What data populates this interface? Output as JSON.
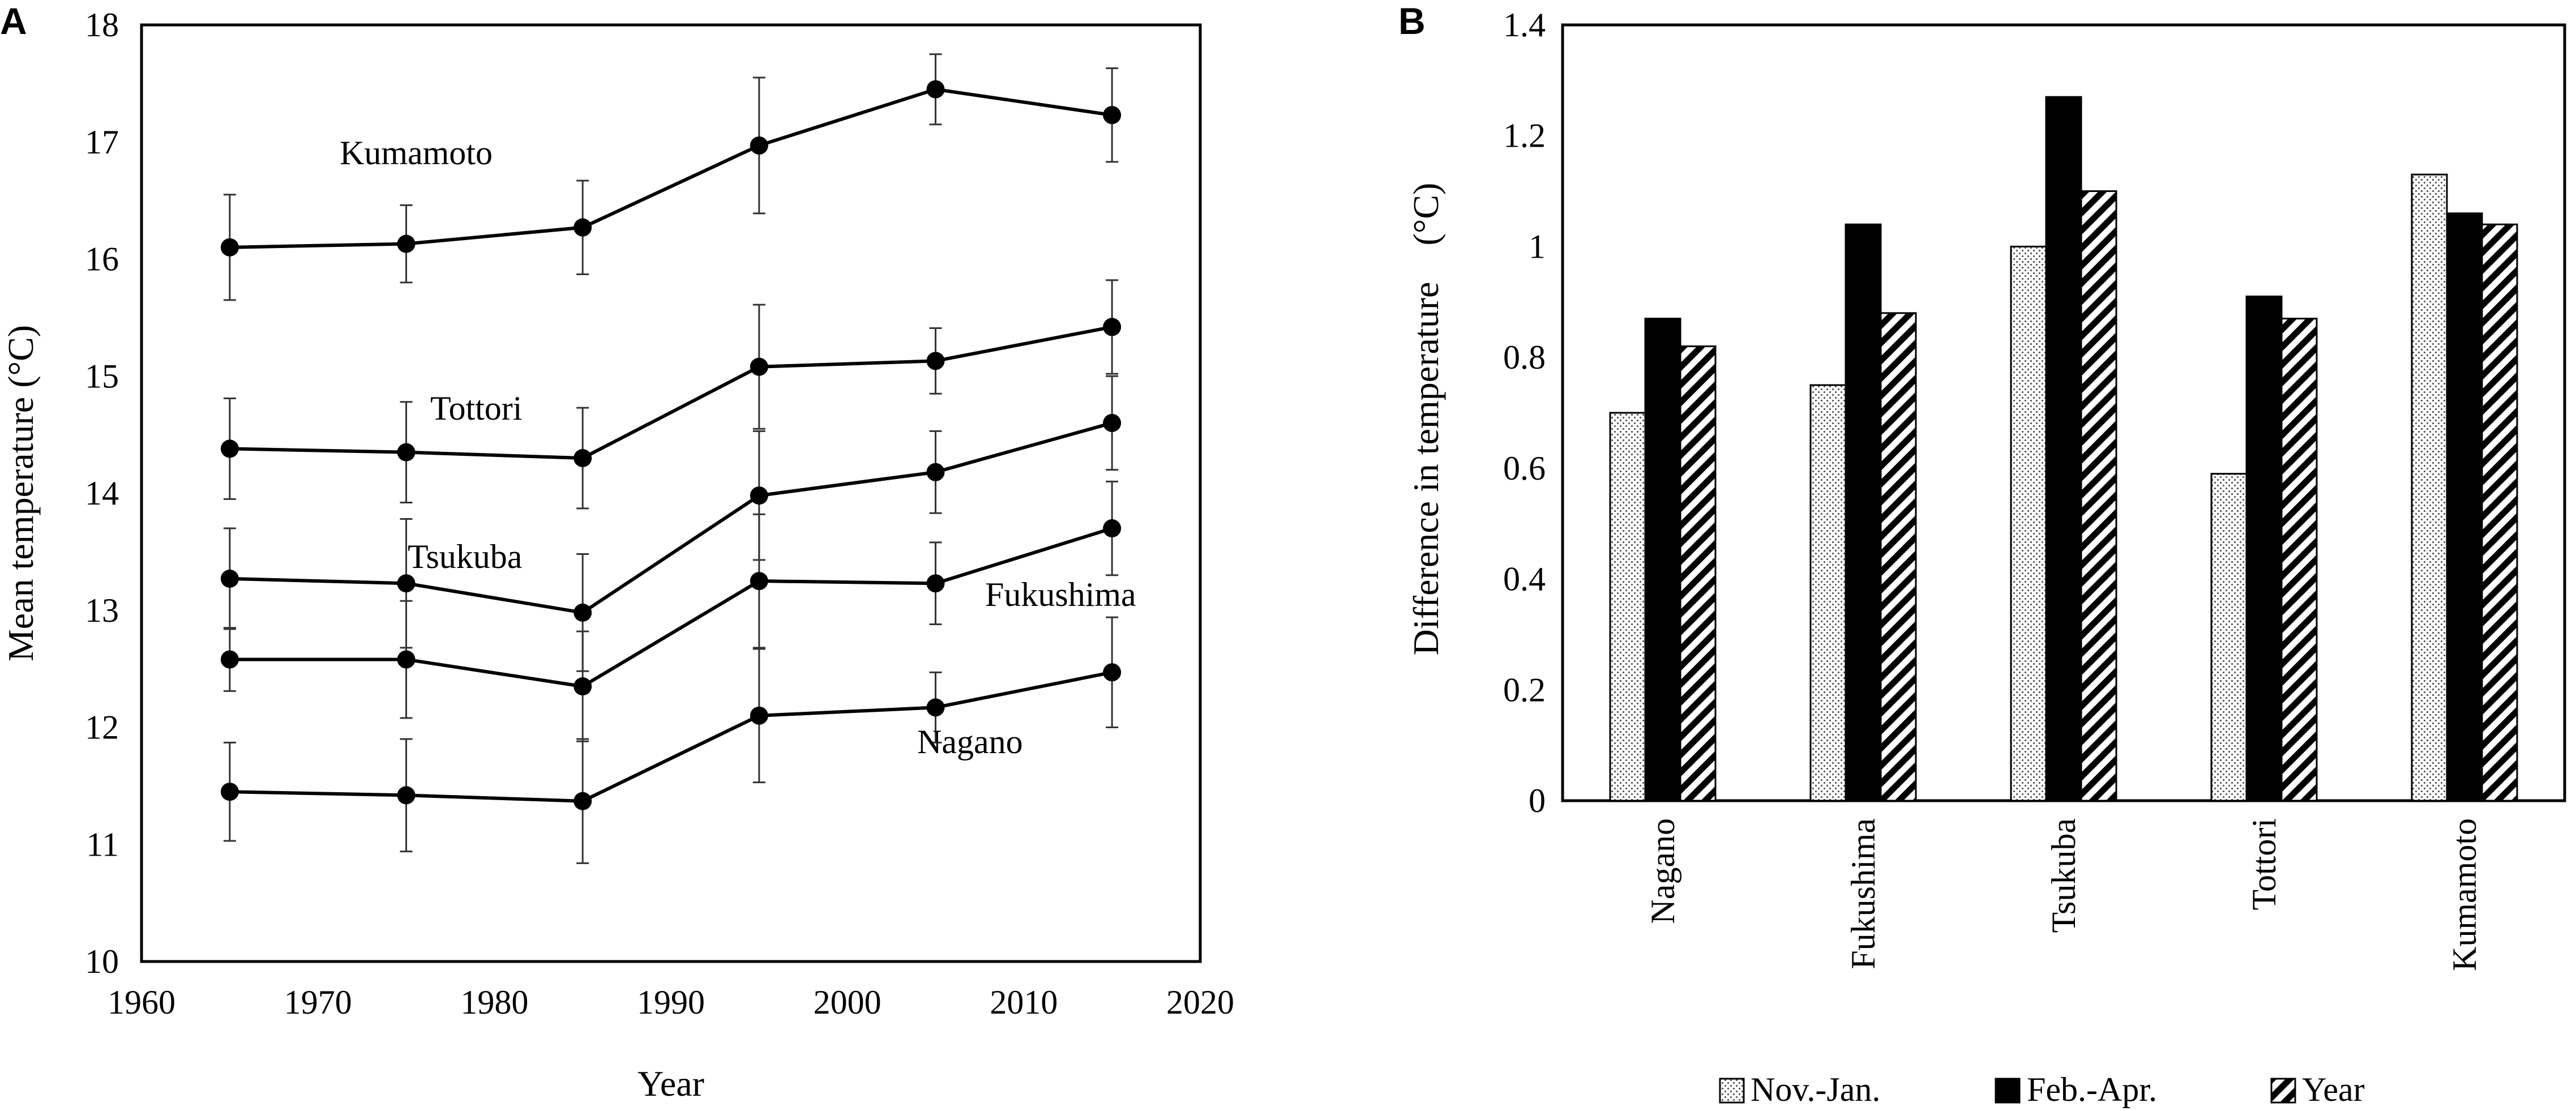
{
  "chart_data": [
    {
      "panel": "A",
      "type": "line",
      "xlabel": "Year",
      "ylabel": "Mean temperature (°C)",
      "xlim": [
        1960,
        2020
      ],
      "ylim": [
        10,
        18
      ],
      "xticks": [
        1960,
        1970,
        1980,
        1990,
        2000,
        2010,
        2020
      ],
      "yticks": [
        10,
        11,
        12,
        13,
        14,
        15,
        16,
        17,
        18
      ],
      "x": [
        1965,
        1975,
        1985,
        1995,
        2005,
        2015
      ],
      "series": [
        {
          "name": "Kumamoto",
          "values": [
            16.1,
            16.13,
            16.27,
            16.97,
            17.45,
            17.23
          ],
          "errors": [
            0.45,
            0.33,
            0.4,
            0.58,
            0.3,
            0.4
          ]
        },
        {
          "name": "Tottori",
          "values": [
            14.38,
            14.35,
            14.3,
            15.08,
            15.13,
            15.42
          ],
          "errors": [
            0.43,
            0.43,
            0.43,
            0.53,
            0.28,
            0.4
          ]
        },
        {
          "name": "Tsukuba",
          "values": [
            13.27,
            13.23,
            12.98,
            13.98,
            14.18,
            14.6
          ],
          "errors": [
            0.43,
            0.55,
            0.5,
            0.55,
            0.35,
            0.4
          ]
        },
        {
          "name": "Fukushima",
          "values": [
            12.58,
            12.58,
            12.35,
            13.25,
            13.23,
            13.7
          ],
          "errors": [
            0.27,
            0.5,
            0.47,
            0.57,
            0.35,
            0.4
          ]
        },
        {
          "name": "Nagano",
          "values": [
            11.45,
            11.42,
            11.37,
            12.1,
            12.17,
            12.47
          ],
          "errors": [
            0.42,
            0.48,
            0.53,
            0.57,
            0.3,
            0.47
          ]
        }
      ]
    },
    {
      "panel": "B",
      "type": "bar",
      "ylabel": "Difference in temperature　(°C)",
      "ylim": [
        0,
        1.4
      ],
      "yticks": [
        "0",
        "0.2",
        "0.4",
        "0.6",
        "0.8",
        "1",
        "1.2",
        "1.4"
      ],
      "categories": [
        "Nagano",
        "Fukushima",
        "Tsukuba",
        "Tottori",
        "Kumamoto"
      ],
      "series": [
        {
          "name": "Nov.-Jan.",
          "pattern": "dotted",
          "values": [
            0.7,
            0.75,
            1.0,
            0.59,
            1.13
          ]
        },
        {
          "name": "Feb.-Apr.",
          "pattern": "solid",
          "values": [
            0.87,
            1.04,
            1.27,
            0.91,
            1.06
          ]
        },
        {
          "name": "Year",
          "pattern": "hatched",
          "values": [
            0.82,
            0.88,
            1.1,
            0.87,
            1.04
          ]
        }
      ],
      "legend": "bottom"
    }
  ],
  "panels": {
    "a_label": "A",
    "b_label": "B"
  },
  "colors": {
    "line": "#000000",
    "bar_solid": "#000000",
    "background": "#ffffff"
  }
}
